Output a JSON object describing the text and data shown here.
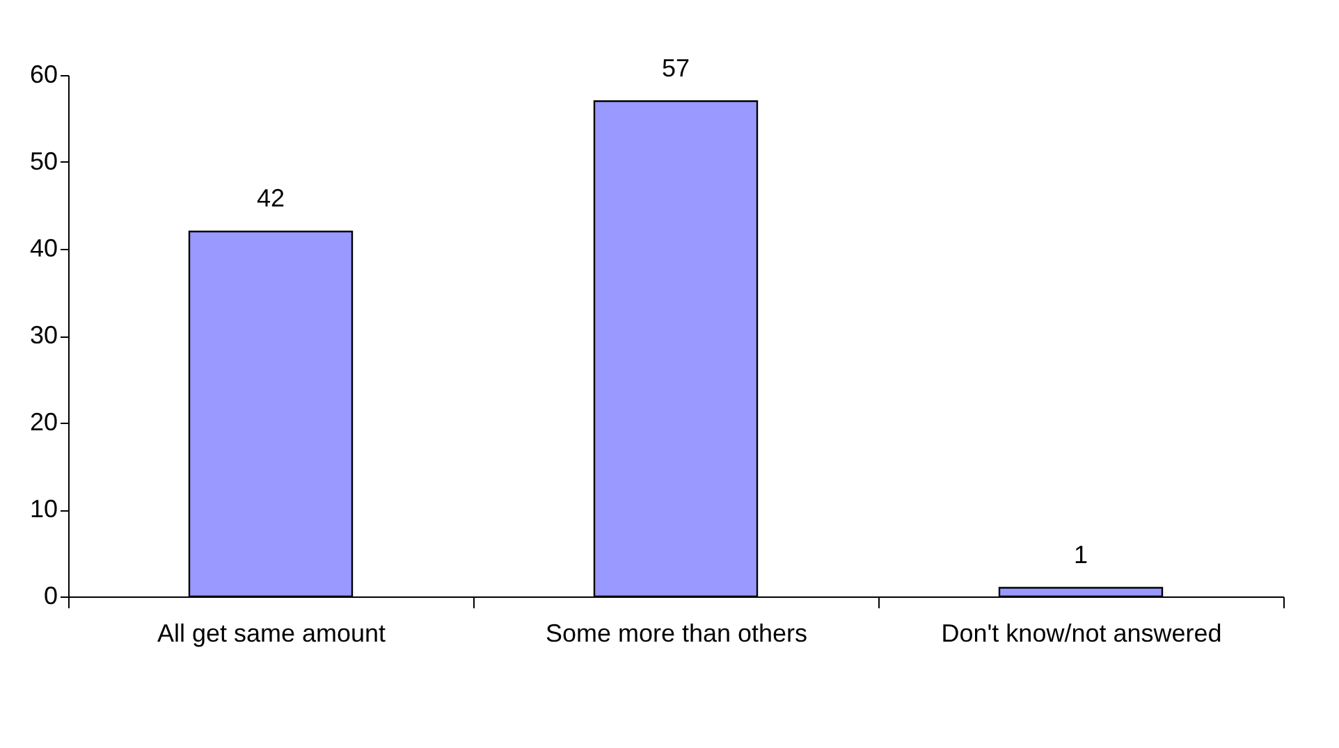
{
  "chart_data": {
    "type": "bar",
    "categories": [
      "All get same amount",
      "Some more than others",
      "Don't know/not answered"
    ],
    "values": [
      42,
      57,
      1
    ],
    "color": "#9999ff",
    "ylim": [
      0,
      60
    ],
    "yticks": [
      0,
      10,
      20,
      30,
      40,
      50,
      60
    ],
    "data_labels": true,
    "grid": false
  }
}
